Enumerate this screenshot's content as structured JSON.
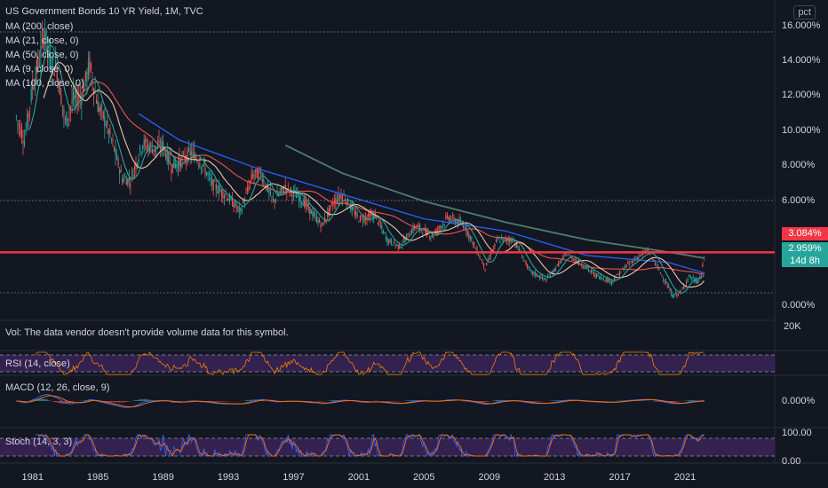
{
  "symbol_title": "US Government Bonds 10 YR Yield, 1M, TVC",
  "scale_button": "pct",
  "ma_legend": [
    "MA (200, close)",
    "MA (21, close, 0)",
    "MA (50, close, 0)",
    "MA (9, close, 0)",
    "MA (100, close, 0)"
  ],
  "price_tags": {
    "resistance": "3.084%",
    "last": "2.959%",
    "countdown": "14d 8h"
  },
  "volume_note": "Vol: The data vendor doesn't provide volume data for this symbol.",
  "volume_axis": "20K",
  "rsi_label": "RSI (14, close)",
  "macd_label": "MACD (12, 26, close, 9)",
  "macd_axis": "0.000%",
  "stoch_label": "Stoch (14, 3, 3)",
  "stoch_axis": [
    "100.00",
    "0.00"
  ],
  "colors": {
    "background": "#131722",
    "up": "#26a69a",
    "down": "#ef5350",
    "ma200": "#4e7d6b",
    "ma100": "#2962ff",
    "ma50": "#ef5350",
    "ma21": "#f5c4a0",
    "ma9": "#26a69a",
    "resistance": "#f23645",
    "band": "#3a2358"
  },
  "chart_data": {
    "type": "line",
    "title": "US Government Bonds 10 YR Yield, 1M, TVC",
    "y_unit": "%",
    "y_ticks": [
      "16.000%",
      "14.000%",
      "12.000%",
      "10.000%",
      "8.000%",
      "6.000%",
      "0.000%"
    ],
    "x_ticks": [
      "1981",
      "1985",
      "1989",
      "1993",
      "1997",
      "2001",
      "2005",
      "2009",
      "2013",
      "2017",
      "2021"
    ],
    "ylim": [
      -0.8,
      17.5
    ],
    "xlim": [
      1979.0,
      2026.5
    ],
    "yield_series": [
      [
        1980.0,
        10.8
      ],
      [
        1980.5,
        9.5
      ],
      [
        1981.0,
        12.5
      ],
      [
        1981.5,
        14.5
      ],
      [
        1981.75,
        15.8
      ],
      [
        1982.0,
        14.2
      ],
      [
        1982.5,
        13.5
      ],
      [
        1983.0,
        10.5
      ],
      [
        1983.5,
        11.8
      ],
      [
        1984.0,
        12.0
      ],
      [
        1984.5,
        13.8
      ],
      [
        1985.0,
        11.5
      ],
      [
        1985.5,
        10.5
      ],
      [
        1986.0,
        9.0
      ],
      [
        1986.5,
        7.3
      ],
      [
        1987.0,
        7.2
      ],
      [
        1987.75,
        9.3
      ],
      [
        1988.5,
        9.0
      ],
      [
        1989.0,
        9.2
      ],
      [
        1989.5,
        8.0
      ],
      [
        1990.0,
        8.2
      ],
      [
        1990.75,
        8.8
      ],
      [
        1991.5,
        8.0
      ],
      [
        1992.0,
        7.0
      ],
      [
        1993.0,
        6.2
      ],
      [
        1993.75,
        5.4
      ],
      [
        1994.5,
        7.5
      ],
      [
        1995.0,
        7.6
      ],
      [
        1995.75,
        6.0
      ],
      [
        1996.5,
        6.8
      ],
      [
        1997.5,
        6.1
      ],
      [
        1998.75,
        4.6
      ],
      [
        1999.5,
        6.0
      ],
      [
        2000.0,
        6.4
      ],
      [
        2001.0,
        5.0
      ],
      [
        2002.0,
        5.2
      ],
      [
        2002.75,
        3.8
      ],
      [
        2003.5,
        3.4
      ],
      [
        2004.5,
        4.6
      ],
      [
        2005.5,
        4.0
      ],
      [
        2006.5,
        5.1
      ],
      [
        2007.5,
        4.6
      ],
      [
        2008.75,
        2.2
      ],
      [
        2009.5,
        3.8
      ],
      [
        2010.5,
        3.8
      ],
      [
        2011.5,
        2.0
      ],
      [
        2012.5,
        1.5
      ],
      [
        2013.75,
        3.0
      ],
      [
        2014.5,
        2.5
      ],
      [
        2015.5,
        1.8
      ],
      [
        2016.5,
        1.4
      ],
      [
        2017.5,
        2.4
      ],
      [
        2018.75,
        3.2
      ],
      [
        2019.75,
        1.5
      ],
      [
        2020.25,
        0.6
      ],
      [
        2020.75,
        0.8
      ],
      [
        2021.25,
        1.7
      ],
      [
        2021.75,
        1.4
      ],
      [
        2022.0,
        1.8
      ],
      [
        2022.2,
        2.96
      ]
    ],
    "ma200": [
      [
        1996.5,
        9.2
      ],
      [
        2000.0,
        7.6
      ],
      [
        2005.0,
        6.0
      ],
      [
        2010.0,
        4.8
      ],
      [
        2015.0,
        3.8
      ],
      [
        2020.0,
        3.1
      ],
      [
        2022.2,
        2.75
      ]
    ],
    "ma100": [
      [
        1987.5,
        11.0
      ],
      [
        1990.0,
        9.5
      ],
      [
        1995.0,
        7.8
      ],
      [
        2000.0,
        6.4
      ],
      [
        2005.0,
        5.0
      ],
      [
        2010.0,
        4.3
      ],
      [
        2015.0,
        2.9
      ],
      [
        2020.0,
        2.5
      ],
      [
        2022.2,
        1.9
      ]
    ],
    "resistance": 3.084,
    "last": 2.959,
    "rsi_range": [
      0,
      100
    ],
    "stoch_range": [
      0,
      100
    ]
  }
}
